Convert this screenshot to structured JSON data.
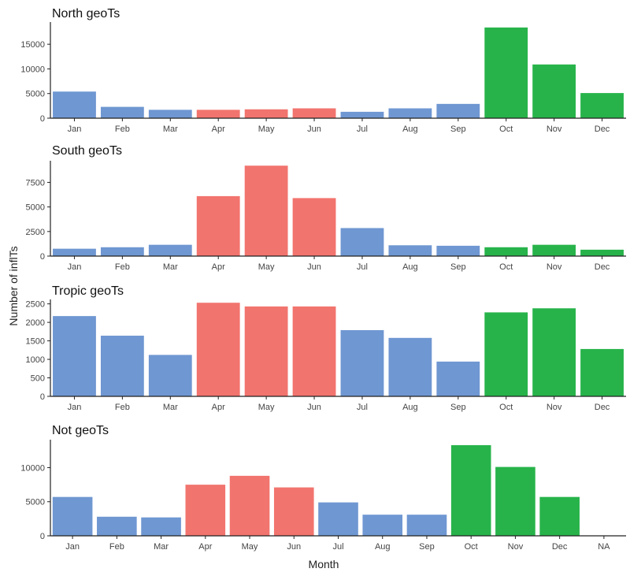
{
  "colors": {
    "other": "#6f97d2",
    "summer": "#f2746e",
    "winter": "#27b34a"
  },
  "chart_data": {
    "type": "bar",
    "xlabel": "Month",
    "ylabel": "Number of inflTs",
    "panels": [
      {
        "title": "North geoTs",
        "categories": [
          "Jan",
          "Feb",
          "Mar",
          "Apr",
          "May",
          "Jun",
          "Jul",
          "Aug",
          "Sep",
          "Oct",
          "Nov",
          "Dec"
        ],
        "values": [
          5400,
          2300,
          1700,
          1700,
          1800,
          2000,
          1300,
          2000,
          2900,
          18400,
          10900,
          5100
        ],
        "groups": [
          "other",
          "other",
          "other",
          "summer",
          "summer",
          "summer",
          "other",
          "other",
          "other",
          "winter",
          "winter",
          "winter"
        ],
        "yticks": [
          0,
          5000,
          10000,
          15000
        ],
        "ylim": [
          0,
          19500
        ]
      },
      {
        "title": "South geoTs",
        "categories": [
          "Jan",
          "Feb",
          "Mar",
          "Apr",
          "May",
          "Jun",
          "Jul",
          "Aug",
          "Sep",
          "Oct",
          "Nov",
          "Dec"
        ],
        "values": [
          750,
          900,
          1150,
          6100,
          9200,
          5900,
          2850,
          1100,
          1050,
          900,
          1150,
          650
        ],
        "groups": [
          "other",
          "other",
          "other",
          "summer",
          "summer",
          "summer",
          "other",
          "other",
          "other",
          "winter",
          "winter",
          "winter"
        ],
        "yticks": [
          0,
          2500,
          5000,
          7500
        ],
        "ylim": [
          0,
          9700
        ]
      },
      {
        "title": "Tropic geoTs",
        "categories": [
          "Jan",
          "Feb",
          "Mar",
          "Apr",
          "May",
          "Jun",
          "Jul",
          "Aug",
          "Sep",
          "Oct",
          "Nov",
          "Dec"
        ],
        "values": [
          2170,
          1640,
          1120,
          2530,
          2430,
          2430,
          1790,
          1580,
          940,
          2270,
          2380,
          1280
        ],
        "groups": [
          "other",
          "other",
          "other",
          "summer",
          "summer",
          "summer",
          "other",
          "other",
          "other",
          "winter",
          "winter",
          "winter"
        ],
        "yticks": [
          0,
          500,
          1000,
          1500,
          2000,
          2500
        ],
        "ylim": [
          0,
          2620
        ]
      },
      {
        "title": "Not geoTs",
        "categories": [
          "Jan",
          "Feb",
          "Mar",
          "Apr",
          "May",
          "Jun",
          "Jul",
          "Aug",
          "Sep",
          "Oct",
          "Nov",
          "Dec",
          "NA"
        ],
        "values": [
          5700,
          2800,
          2700,
          7500,
          8800,
          7100,
          4900,
          3100,
          3100,
          13300,
          10100,
          5700,
          0
        ],
        "groups": [
          "other",
          "other",
          "other",
          "summer",
          "summer",
          "summer",
          "other",
          "other",
          "other",
          "winter",
          "winter",
          "winter",
          "other"
        ],
        "yticks": [
          0,
          5000,
          10000
        ],
        "ylim": [
          0,
          14100
        ]
      }
    ]
  }
}
